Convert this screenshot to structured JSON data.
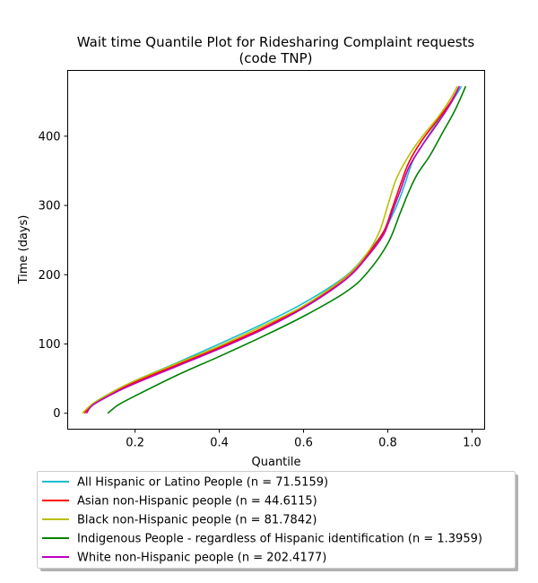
{
  "chart_data": {
    "type": "line",
    "title": [
      "Wait time Quantile Plot for Ridesharing Complaint  requests",
      "(code TNP)"
    ],
    "xlabel": "Quantile",
    "ylabel": "Time (days)",
    "xlim": [
      0.04,
      1.03
    ],
    "ylim": [
      -23,
      495
    ],
    "xticks": [
      0.2,
      0.4,
      0.6,
      0.8,
      1.0
    ],
    "xtick_labels": [
      "0.2",
      "0.4",
      "0.6",
      "0.8",
      "1.0"
    ],
    "yticks": [
      0,
      100,
      200,
      300,
      400
    ],
    "ytick_labels": [
      "0",
      "100",
      "200",
      "300",
      "400"
    ],
    "grid": false,
    "legend_position": "below plot",
    "series": [
      {
        "name": "All Hispanic or Latino People (n = 71.5159)",
        "color": "#17becf",
        "x": [
          0.08,
          0.1,
          0.15,
          0.2,
          0.3,
          0.4,
          0.5,
          0.6,
          0.7,
          0.75,
          0.79,
          0.82,
          0.84,
          0.86,
          0.89,
          0.92,
          0.95,
          0.975
        ],
        "y": [
          0,
          14,
          32,
          47,
          73,
          100,
          128,
          159,
          198,
          230,
          262,
          298,
          330,
          365,
          395,
          422,
          448,
          472
        ]
      },
      {
        "name": "Asian non-Hispanic people (n = 44.6115)",
        "color": "#ff0000",
        "x": [
          0.08,
          0.1,
          0.15,
          0.2,
          0.3,
          0.4,
          0.5,
          0.6,
          0.7,
          0.75,
          0.79,
          0.81,
          0.83,
          0.85,
          0.88,
          0.92,
          0.95,
          0.97
        ],
        "y": [
          0,
          13,
          30,
          45,
          70,
          95,
          122,
          154,
          196,
          228,
          262,
          295,
          330,
          362,
          393,
          425,
          450,
          472
        ]
      },
      {
        "name": "Black non-Hispanic people (n = 81.7842)",
        "color": "#bcbd00",
        "x": [
          0.075,
          0.1,
          0.15,
          0.2,
          0.3,
          0.4,
          0.5,
          0.6,
          0.7,
          0.75,
          0.78,
          0.8,
          0.82,
          0.85,
          0.88,
          0.92,
          0.95,
          0.965
        ],
        "y": [
          0,
          14,
          32,
          47,
          72,
          97,
          125,
          155,
          197,
          230,
          262,
          300,
          338,
          372,
          398,
          428,
          455,
          472
        ]
      },
      {
        "name": "Indigenous People - regardless of Hispanic identification (n = 1.3959)",
        "color": "#008000",
        "x": [
          0.135,
          0.16,
          0.2,
          0.3,
          0.4,
          0.5,
          0.6,
          0.7,
          0.75,
          0.8,
          0.83,
          0.85,
          0.87,
          0.9,
          0.93,
          0.96,
          0.985
        ],
        "y": [
          0,
          12,
          25,
          55,
          82,
          110,
          140,
          175,
          202,
          245,
          290,
          320,
          345,
          372,
          405,
          438,
          472
        ]
      },
      {
        "name": "White non-Hispanic people (n = 202.4177)",
        "color": "#bf00bf",
        "x": [
          0.085,
          0.1,
          0.15,
          0.2,
          0.3,
          0.4,
          0.5,
          0.6,
          0.7,
          0.75,
          0.79,
          0.81,
          0.83,
          0.85,
          0.88,
          0.92,
          0.95,
          0.97
        ],
        "y": [
          0,
          12,
          29,
          43,
          68,
          93,
          120,
          152,
          193,
          225,
          258,
          290,
          322,
          355,
          385,
          420,
          448,
          472
        ]
      }
    ]
  }
}
